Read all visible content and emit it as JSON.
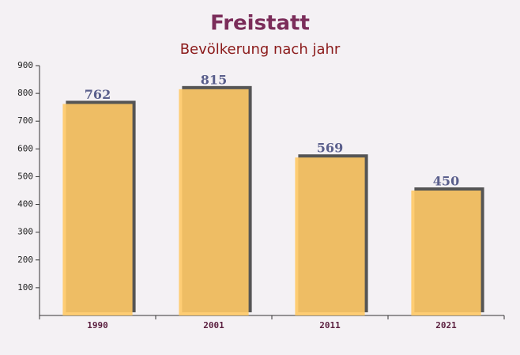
{
  "chart_data": {
    "type": "bar",
    "title": "Freistatt",
    "subtitle": "Bevölkerung nach jahr",
    "categories": [
      "1990",
      "2001",
      "2011",
      "2021"
    ],
    "values": [
      762,
      815,
      569,
      450
    ],
    "color": "#ffc966",
    "ylim": [
      0,
      900
    ],
    "yticks": [
      100,
      200,
      300,
      400,
      500,
      600,
      700,
      800,
      900
    ]
  }
}
